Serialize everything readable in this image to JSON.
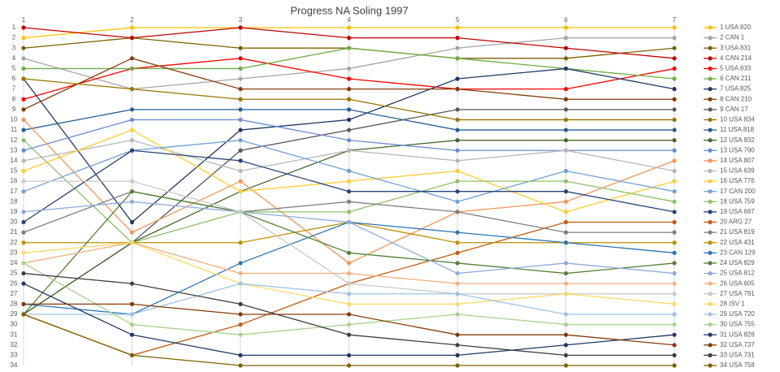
{
  "chart_data": {
    "type": "line",
    "title": "Progress NA Soling 1997",
    "categories": [
      "1",
      "2",
      "3",
      "4",
      "5",
      "6",
      "7"
    ],
    "ylim": [
      1,
      34
    ],
    "y_inverted": true,
    "yticks": [
      1,
      2,
      3,
      4,
      5,
      6,
      7,
      8,
      9,
      10,
      11,
      12,
      13,
      14,
      15,
      16,
      17,
      18,
      19,
      20,
      21,
      22,
      23,
      24,
      25,
      26,
      27,
      28,
      29,
      30,
      31,
      32,
      33,
      34
    ],
    "grid": true,
    "legend": "right",
    "series": [
      {
        "name": "1 USA 820",
        "color": "#ffc000",
        "values": [
          2,
          1,
          1,
          1,
          1,
          1,
          1
        ]
      },
      {
        "name": "2 CAN 1",
        "color": "#a5a5a5",
        "values": [
          4,
          7,
          6,
          5,
          3,
          2,
          2
        ]
      },
      {
        "name": "3 USA 831",
        "color": "#7f6000",
        "values": [
          3,
          2,
          3,
          3,
          4,
          4,
          3
        ]
      },
      {
        "name": "4 CAN 214",
        "color": "#c00000",
        "values": [
          1,
          2,
          1,
          2,
          2,
          3,
          4
        ]
      },
      {
        "name": "5 USA 833",
        "color": "#ff0000",
        "values": [
          8,
          5,
          4,
          6,
          7,
          7,
          5
        ]
      },
      {
        "name": "6 CAN 211",
        "color": "#70ad47",
        "values": [
          5,
          5,
          5,
          3,
          4,
          5,
          6
        ]
      },
      {
        "name": "7 USA 825",
        "color": "#203864",
        "values": [
          6,
          20,
          11,
          10,
          6,
          5,
          7
        ]
      },
      {
        "name": "8 CAN 210",
        "color": "#843c0c",
        "values": [
          9,
          4,
          7,
          7,
          7,
          8,
          8
        ]
      },
      {
        "name": "9 CAN 17",
        "color": "#595959",
        "values": [
          29,
          22,
          13,
          11,
          9,
          9,
          9
        ]
      },
      {
        "name": "10 USA 834",
        "color": "#997300",
        "values": [
          6,
          7,
          8,
          8,
          10,
          10,
          10
        ]
      },
      {
        "name": "11 USA 818",
        "color": "#255e91",
        "values": [
          11,
          9,
          9,
          9,
          11,
          11,
          11
        ]
      },
      {
        "name": "12 USA 832",
        "color": "#43682b",
        "values": [
          29,
          22,
          17,
          13,
          12,
          12,
          12
        ]
      },
      {
        "name": "13 USA 790",
        "color": "#698ed0",
        "values": [
          13,
          10,
          10,
          12,
          13,
          13,
          13
        ]
      },
      {
        "name": "14 USA 807",
        "color": "#f1975a",
        "values": [
          10,
          21,
          16,
          24,
          19,
          18,
          14
        ]
      },
      {
        "name": "15 USA 639",
        "color": "#b7b7b7",
        "values": [
          14,
          12,
          15,
          13,
          14,
          13,
          15
        ]
      },
      {
        "name": "16 USA 776",
        "color": "#ffcd33",
        "values": [
          15,
          11,
          17,
          16,
          15,
          19,
          16
        ]
      },
      {
        "name": "17 CAN 200",
        "color": "#6fa0d6",
        "values": [
          17,
          13,
          12,
          15,
          18,
          15,
          17
        ]
      },
      {
        "name": "18 USA 759",
        "color": "#8cc168",
        "values": [
          12,
          22,
          19,
          19,
          16,
          16,
          18
        ]
      },
      {
        "name": "19 USA 697",
        "color": "#264478",
        "values": [
          20,
          13,
          14,
          17,
          17,
          17,
          19
        ]
      },
      {
        "name": "20 ARG 27",
        "color": "#c55a11",
        "values": [
          29,
          33,
          30,
          26,
          23,
          20,
          20
        ]
      },
      {
        "name": "21 USA 819",
        "color": "#7f7f7f",
        "values": [
          21,
          17,
          19,
          18,
          19,
          21,
          21
        ]
      },
      {
        "name": "22 USA 431",
        "color": "#bf9000",
        "values": [
          22,
          22,
          22,
          20,
          22,
          22,
          22
        ]
      },
      {
        "name": "23 CAN 129",
        "color": "#2e75b6",
        "values": [
          28,
          29,
          24,
          20,
          21,
          22,
          23
        ]
      },
      {
        "name": "24 USA 829",
        "color": "#548235",
        "values": [
          29,
          17,
          19,
          23,
          24,
          25,
          24
        ]
      },
      {
        "name": "25 USA 812",
        "color": "#8faadc",
        "values": [
          19,
          18,
          19,
          20,
          25,
          24,
          25
        ]
      },
      {
        "name": "26 USA 605",
        "color": "#f4b183",
        "values": [
          24,
          22,
          25,
          25,
          26,
          26,
          26
        ]
      },
      {
        "name": "27 USA 791",
        "color": "#c9c9c9",
        "values": [
          16,
          16,
          19,
          26,
          27,
          27,
          27
        ]
      },
      {
        "name": "28 ISV 1",
        "color": "#ffd966",
        "values": [
          23,
          22,
          26,
          28,
          28,
          27,
          28
        ]
      },
      {
        "name": "29 USA 720",
        "color": "#9dc3e6",
        "values": [
          29,
          29,
          26,
          27,
          27,
          29,
          29
        ]
      },
      {
        "name": "30 USA 755",
        "color": "#a9d18e",
        "values": [
          24,
          30,
          31,
          30,
          29,
          30,
          30
        ]
      },
      {
        "name": "31 USA 828",
        "color": "#1f3864",
        "values": [
          26,
          31,
          33,
          33,
          33,
          32,
          31
        ]
      },
      {
        "name": "32 USA 737",
        "color": "#843c0c",
        "values": [
          28,
          28,
          29,
          29,
          31,
          31,
          32
        ]
      },
      {
        "name": "33 USA 731",
        "color": "#404040",
        "values": [
          25,
          26,
          28,
          31,
          32,
          33,
          33
        ]
      },
      {
        "name": "34 USA 758",
        "color": "#7f6000",
        "values": [
          29,
          33,
          34,
          34,
          34,
          34,
          34
        ]
      }
    ]
  }
}
